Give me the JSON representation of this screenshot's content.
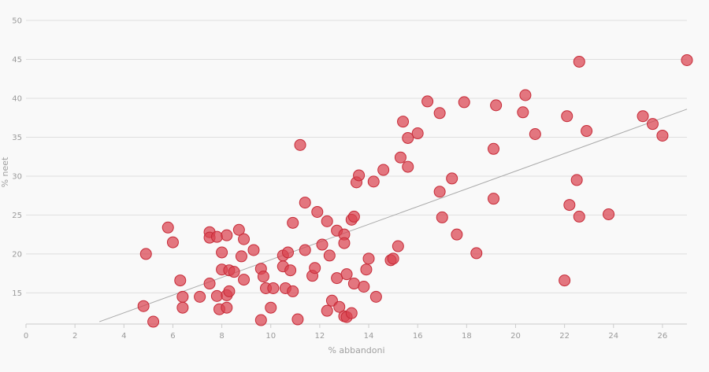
{
  "chart_data": {
    "type": "scatter",
    "title": "",
    "xlabel": "% abbandoni",
    "ylabel": "% neet",
    "xlim": [
      0,
      27
    ],
    "ylim": [
      11,
      50
    ],
    "xticks": [
      0,
      2,
      4,
      6,
      8,
      10,
      12,
      14,
      16,
      18,
      20,
      22,
      24,
      26
    ],
    "yticks": [
      15,
      20,
      25,
      30,
      35,
      40,
      45,
      50
    ],
    "grid": "horizontal",
    "point_color": "#d9434f",
    "trend_color": "#aaaaaa",
    "trendline": {
      "x": [
        3,
        27
      ],
      "y": [
        11.3,
        38.6
      ]
    },
    "points": [
      {
        "x": 4.8,
        "y": 13.3
      },
      {
        "x": 4.9,
        "y": 20.0
      },
      {
        "x": 5.2,
        "y": 11.3
      },
      {
        "x": 5.8,
        "y": 23.4
      },
      {
        "x": 6.0,
        "y": 21.5
      },
      {
        "x": 6.3,
        "y": 16.6
      },
      {
        "x": 6.4,
        "y": 14.5
      },
      {
        "x": 6.4,
        "y": 13.1
      },
      {
        "x": 7.1,
        "y": 14.5
      },
      {
        "x": 7.5,
        "y": 22.8
      },
      {
        "x": 7.5,
        "y": 22.1
      },
      {
        "x": 7.5,
        "y": 16.2
      },
      {
        "x": 7.8,
        "y": 22.2
      },
      {
        "x": 7.8,
        "y": 14.6
      },
      {
        "x": 7.9,
        "y": 12.9
      },
      {
        "x": 8.0,
        "y": 20.2
      },
      {
        "x": 8.0,
        "y": 18.0
      },
      {
        "x": 8.2,
        "y": 22.4
      },
      {
        "x": 8.2,
        "y": 13.1
      },
      {
        "x": 8.2,
        "y": 14.7
      },
      {
        "x": 8.3,
        "y": 15.2
      },
      {
        "x": 8.3,
        "y": 17.9
      },
      {
        "x": 8.5,
        "y": 17.7
      },
      {
        "x": 8.7,
        "y": 23.1
      },
      {
        "x": 8.8,
        "y": 19.7
      },
      {
        "x": 8.9,
        "y": 21.9
      },
      {
        "x": 8.9,
        "y": 16.7
      },
      {
        "x": 9.3,
        "y": 20.5
      },
      {
        "x": 9.6,
        "y": 18.1
      },
      {
        "x": 9.6,
        "y": 11.5
      },
      {
        "x": 9.7,
        "y": 17.1
      },
      {
        "x": 9.8,
        "y": 15.6
      },
      {
        "x": 10.0,
        "y": 13.1
      },
      {
        "x": 10.1,
        "y": 15.6
      },
      {
        "x": 10.5,
        "y": 19.8
      },
      {
        "x": 10.5,
        "y": 18.4
      },
      {
        "x": 10.6,
        "y": 15.6
      },
      {
        "x": 10.7,
        "y": 20.2
      },
      {
        "x": 10.8,
        "y": 17.9
      },
      {
        "x": 10.9,
        "y": 24.0
      },
      {
        "x": 10.9,
        "y": 15.2
      },
      {
        "x": 11.1,
        "y": 11.6
      },
      {
        "x": 11.2,
        "y": 34.0
      },
      {
        "x": 11.4,
        "y": 26.6
      },
      {
        "x": 11.4,
        "y": 20.5
      },
      {
        "x": 11.7,
        "y": 17.2
      },
      {
        "x": 11.8,
        "y": 18.2
      },
      {
        "x": 11.9,
        "y": 25.4
      },
      {
        "x": 12.1,
        "y": 21.2
      },
      {
        "x": 12.3,
        "y": 24.2
      },
      {
        "x": 12.3,
        "y": 12.7
      },
      {
        "x": 12.4,
        "y": 19.8
      },
      {
        "x": 12.5,
        "y": 14.0
      },
      {
        "x": 12.7,
        "y": 23.0
      },
      {
        "x": 12.7,
        "y": 16.9
      },
      {
        "x": 12.8,
        "y": 13.2
      },
      {
        "x": 13.0,
        "y": 22.5
      },
      {
        "x": 13.0,
        "y": 21.4
      },
      {
        "x": 13.0,
        "y": 12.0
      },
      {
        "x": 13.1,
        "y": 11.9
      },
      {
        "x": 13.1,
        "y": 17.4
      },
      {
        "x": 13.3,
        "y": 24.4
      },
      {
        "x": 13.3,
        "y": 12.4
      },
      {
        "x": 13.4,
        "y": 24.8
      },
      {
        "x": 13.4,
        "y": 16.2
      },
      {
        "x": 13.5,
        "y": 29.2
      },
      {
        "x": 13.6,
        "y": 30.1
      },
      {
        "x": 13.8,
        "y": 15.8
      },
      {
        "x": 13.9,
        "y": 18.0
      },
      {
        "x": 14.0,
        "y": 19.4
      },
      {
        "x": 14.2,
        "y": 29.3
      },
      {
        "x": 14.3,
        "y": 14.5
      },
      {
        "x": 14.6,
        "y": 30.8
      },
      {
        "x": 14.9,
        "y": 19.2
      },
      {
        "x": 15.0,
        "y": 19.4
      },
      {
        "x": 15.2,
        "y": 21.0
      },
      {
        "x": 15.3,
        "y": 32.4
      },
      {
        "x": 15.4,
        "y": 37.0
      },
      {
        "x": 15.6,
        "y": 34.9
      },
      {
        "x": 15.6,
        "y": 31.2
      },
      {
        "x": 16.0,
        "y": 35.5
      },
      {
        "x": 16.4,
        "y": 39.6
      },
      {
        "x": 16.9,
        "y": 38.1
      },
      {
        "x": 16.9,
        "y": 28.0
      },
      {
        "x": 17.0,
        "y": 24.7
      },
      {
        "x": 17.4,
        "y": 29.7
      },
      {
        "x": 17.6,
        "y": 22.5
      },
      {
        "x": 17.9,
        "y": 39.5
      },
      {
        "x": 18.4,
        "y": 20.1
      },
      {
        "x": 19.1,
        "y": 33.5
      },
      {
        "x": 19.1,
        "y": 27.1
      },
      {
        "x": 19.2,
        "y": 39.1
      },
      {
        "x": 20.3,
        "y": 38.2
      },
      {
        "x": 20.4,
        "y": 40.4
      },
      {
        "x": 20.8,
        "y": 35.4
      },
      {
        "x": 22.0,
        "y": 16.6
      },
      {
        "x": 22.1,
        "y": 37.7
      },
      {
        "x": 22.2,
        "y": 26.3
      },
      {
        "x": 22.5,
        "y": 29.5
      },
      {
        "x": 22.6,
        "y": 44.7
      },
      {
        "x": 22.6,
        "y": 24.8
      },
      {
        "x": 22.9,
        "y": 35.8
      },
      {
        "x": 23.8,
        "y": 25.1
      },
      {
        "x": 25.2,
        "y": 37.7
      },
      {
        "x": 25.6,
        "y": 36.7
      },
      {
        "x": 26.0,
        "y": 35.2
      },
      {
        "x": 27.0,
        "y": 44.9
      }
    ]
  }
}
